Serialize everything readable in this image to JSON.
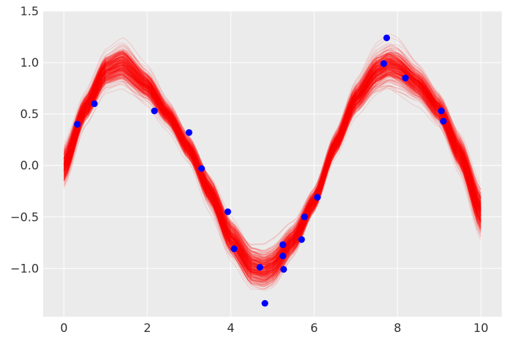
{
  "chart_data": {
    "type": "line",
    "title": "",
    "xlabel": "",
    "ylabel": "",
    "xlim": [
      -0.5,
      10.5
    ],
    "ylim": [
      -1.47,
      1.5
    ],
    "grid": true,
    "legend": "none",
    "x_ticks": [
      {
        "value": 0,
        "label": "0"
      },
      {
        "value": 2,
        "label": "2"
      },
      {
        "value": 4,
        "label": "4"
      },
      {
        "value": 6,
        "label": "6"
      },
      {
        "value": 8,
        "label": "8"
      },
      {
        "value": 10,
        "label": "10"
      }
    ],
    "y_ticks": [
      {
        "value": -1.0,
        "label": "−1.0"
      },
      {
        "value": -0.5,
        "label": "−0.5"
      },
      {
        "value": 0.0,
        "label": "0.0"
      },
      {
        "value": 0.5,
        "label": "0.5"
      },
      {
        "value": 1.0,
        "label": "1.0"
      },
      {
        "value": 1.5,
        "label": "1.5"
      }
    ],
    "series": [
      {
        "kind": "line-ensemble",
        "color": "#ff0000",
        "x_range": [
          0,
          10
        ],
        "center": {
          "x": [
            0,
            0.5,
            1.0,
            1.4,
            2.0,
            2.5,
            3.0,
            3.5,
            4.0,
            4.5,
            4.8,
            5.0,
            5.5,
            6.0,
            6.5,
            7.0,
            7.5,
            7.8,
            8.0,
            8.5,
            9.0,
            9.5,
            10.0
          ],
          "y": [
            0.0,
            0.55,
            0.92,
            0.99,
            0.78,
            0.5,
            0.17,
            -0.25,
            -0.7,
            -0.98,
            -1.01,
            -0.97,
            -0.72,
            -0.34,
            0.2,
            0.65,
            0.92,
            0.99,
            0.96,
            0.8,
            0.55,
            0.12,
            -0.45
          ]
        },
        "band": {
          "x": [
            0,
            0.5,
            1.0,
            1.5,
            2.0,
            2.5,
            3.0,
            3.5,
            4.0,
            4.5,
            5.0,
            5.5,
            6.0,
            6.5,
            7.0,
            7.5,
            8.0,
            8.5,
            9.0,
            9.5,
            10.0
          ],
          "half_width": [
            0.14,
            0.1,
            0.12,
            0.14,
            0.11,
            0.08,
            0.08,
            0.1,
            0.12,
            0.13,
            0.13,
            0.1,
            0.08,
            0.08,
            0.1,
            0.13,
            0.14,
            0.11,
            0.1,
            0.12,
            0.16
          ]
        }
      },
      {
        "kind": "scatter",
        "color": "#0000ff",
        "x": [
          0.32,
          0.73,
          2.17,
          3.0,
          3.3,
          3.93,
          4.08,
          4.7,
          4.82,
          5.25,
          5.25,
          5.27,
          5.7,
          5.77,
          6.08,
          7.67,
          7.74,
          8.19,
          9.05,
          9.1
        ],
        "y": [
          0.4,
          0.6,
          0.53,
          0.32,
          -0.03,
          -0.45,
          -0.81,
          -0.99,
          -1.34,
          -0.77,
          -0.88,
          -1.01,
          -0.72,
          -0.5,
          -0.31,
          0.99,
          1.24,
          0.85,
          0.53,
          0.43
        ]
      }
    ]
  }
}
